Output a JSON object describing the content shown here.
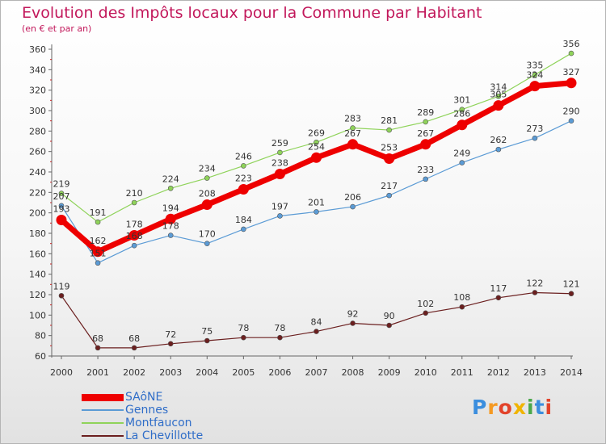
{
  "header": {
    "title": "Evolution des Impôts locaux pour la Commune par Habitant",
    "subtitle": "(en € et par an)"
  },
  "logo": {
    "text": "Proxiti"
  },
  "chart_data": {
    "type": "line",
    "title": "Evolution des Impôts locaux pour la Commune par Habitant",
    "subtitle": "(en € et par an)",
    "xlabel": "",
    "ylabel": "",
    "x": [
      "2000",
      "2001",
      "2002",
      "2003",
      "2004",
      "2005",
      "2006",
      "2007",
      "2008",
      "2009",
      "2010",
      "2011",
      "2012",
      "2013",
      "2014"
    ],
    "ylim": [
      60,
      360
    ],
    "yticks": [
      60,
      80,
      100,
      120,
      140,
      160,
      180,
      200,
      220,
      240,
      260,
      280,
      300,
      320,
      340,
      360
    ],
    "grid": false,
    "legend": "bottom-left",
    "series": [
      {
        "name": "SAôNE",
        "color": "#ee0000",
        "emphasis": true,
        "values": [
          193,
          162,
          178,
          194,
          208,
          223,
          238,
          254,
          267,
          253,
          267,
          286,
          305,
          324,
          327
        ]
      },
      {
        "name": "Gennes",
        "color": "#5b9bd5",
        "emphasis": false,
        "values": [
          207,
          151,
          168,
          178,
          170,
          184,
          197,
          201,
          206,
          217,
          233,
          249,
          262,
          273,
          290
        ]
      },
      {
        "name": "Montfaucon",
        "color": "#8fd35a",
        "emphasis": false,
        "values": [
          219,
          191,
          210,
          224,
          234,
          246,
          259,
          269,
          283,
          281,
          289,
          301,
          314,
          335,
          356
        ]
      },
      {
        "name": "La Chevillotte",
        "color": "#6b1f1f",
        "emphasis": false,
        "values": [
          119,
          68,
          68,
          72,
          75,
          78,
          78,
          84,
          92,
          90,
          102,
          108,
          117,
          122,
          121
        ]
      }
    ]
  }
}
